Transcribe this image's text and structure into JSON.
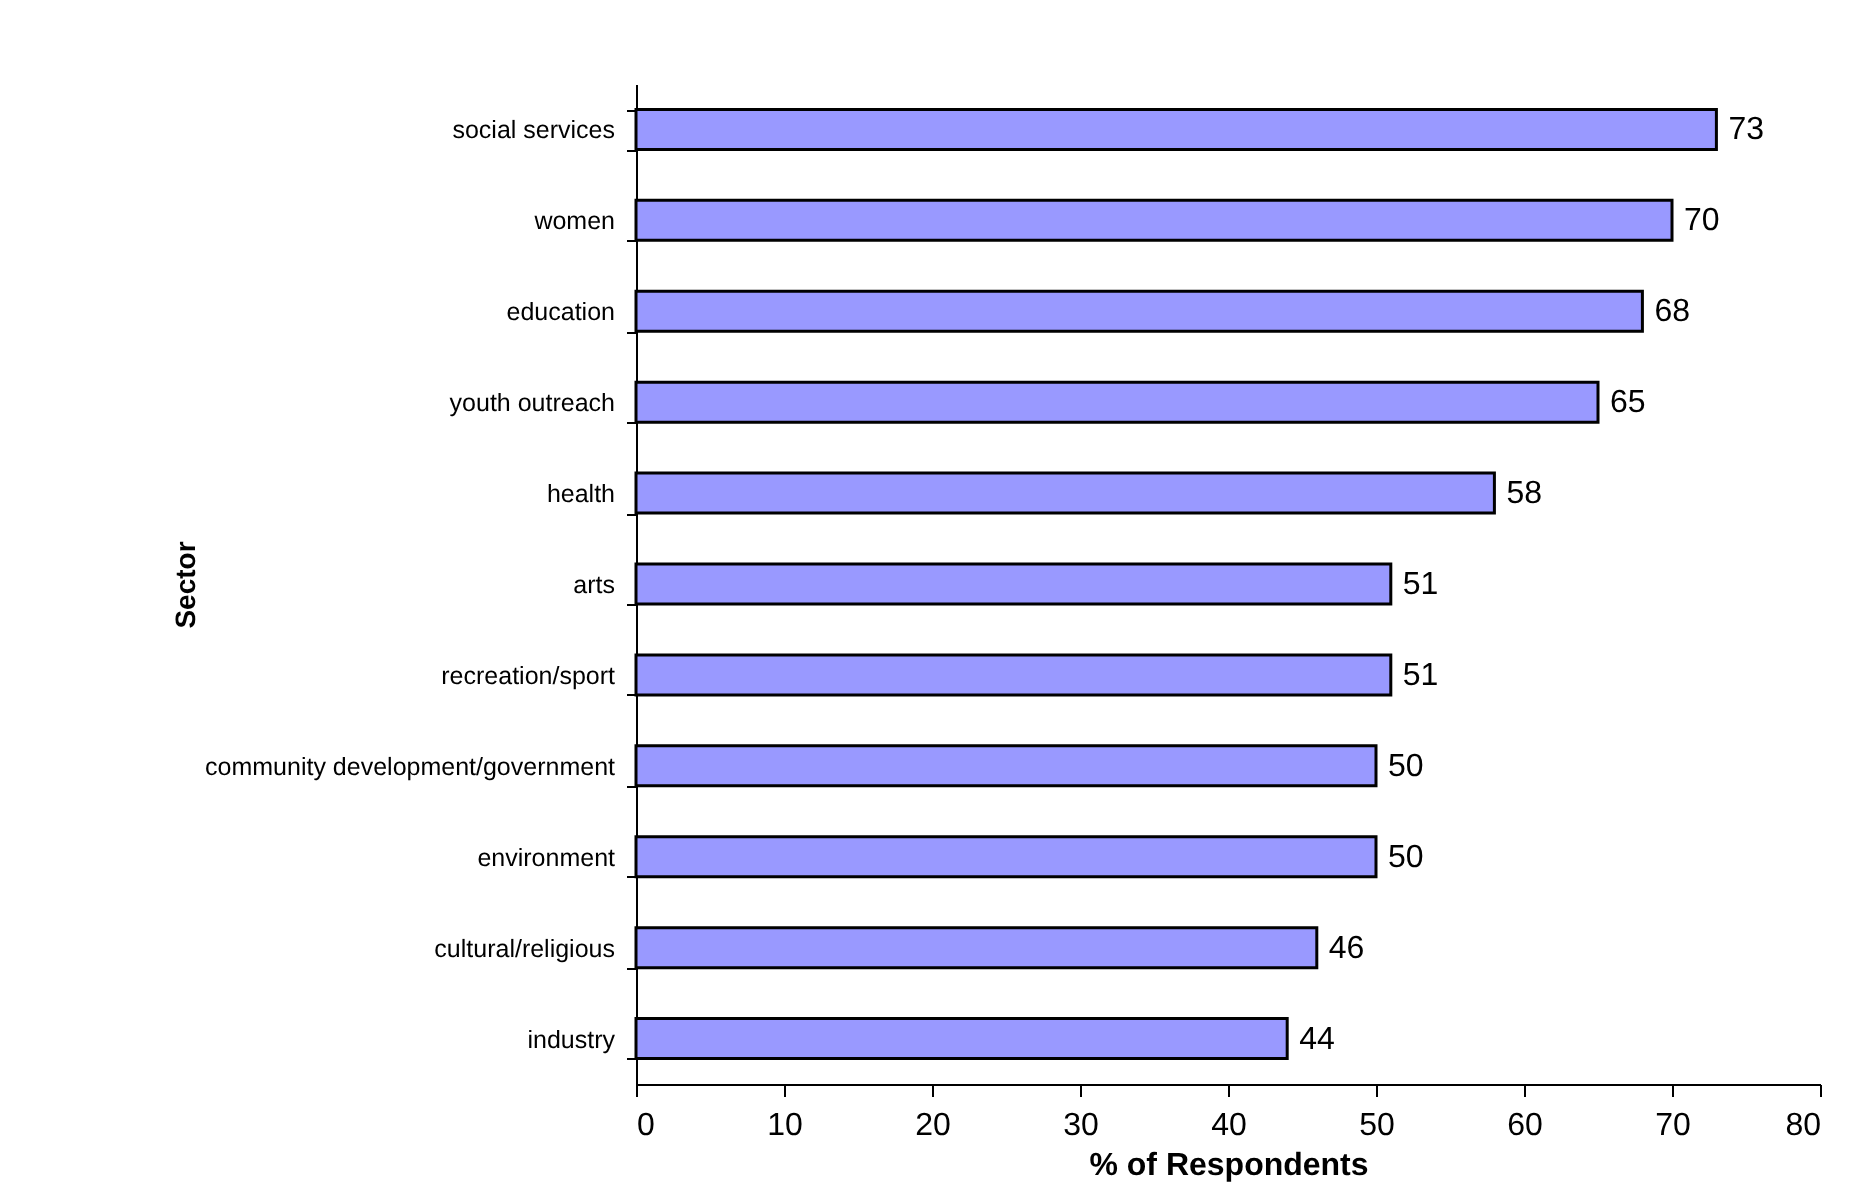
{
  "chart_data": {
    "type": "bar",
    "orientation": "horizontal",
    "xlabel": "% of Respondents",
    "ylabel": "Sector",
    "categories": [
      "social services",
      "women",
      "education",
      "youth outreach",
      "health",
      "arts",
      "recreation/sport",
      "community development/government",
      "environment",
      "cultural/religious",
      "industry"
    ],
    "values": [
      73,
      70,
      68,
      65,
      58,
      51,
      51,
      50,
      50,
      46,
      44
    ],
    "color": "#9999ff",
    "data_labels": true,
    "grid": false,
    "xlim": [
      0,
      80
    ],
    "xticks": [
      0,
      10,
      20,
      30,
      40,
      50,
      60,
      70,
      80
    ]
  }
}
